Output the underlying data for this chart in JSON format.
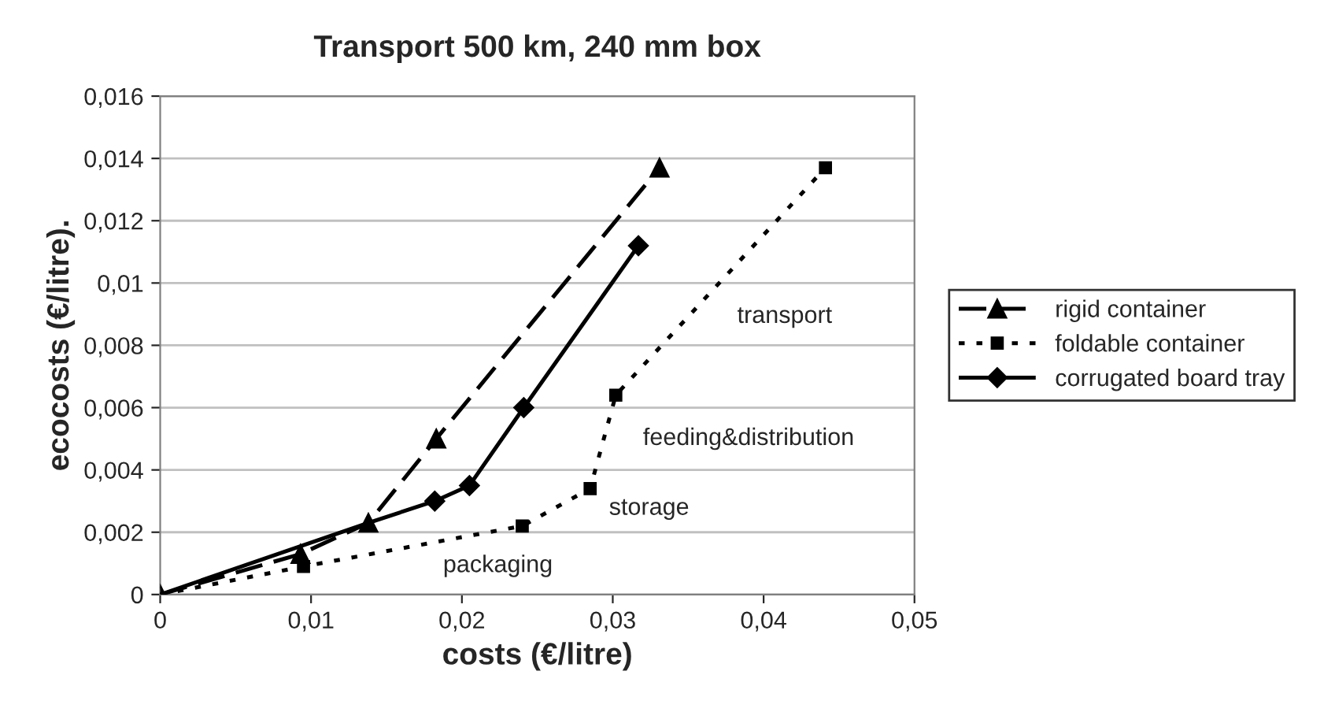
{
  "chart_data": {
    "type": "line",
    "title": "Transport 500 km, 240 mm box",
    "xlabel": "costs (€/litre)",
    "ylabel": "ecocosts (€/litre).",
    "series": [
      {
        "name": "rigid container",
        "color": "#000000",
        "marker": "triangle",
        "line_style": "dashed",
        "x": [
          0,
          0.0093,
          0.0138,
          0.0183,
          0.0331
        ],
        "values": [
          0,
          0.0013,
          0.0023,
          0.005,
          0.0137
        ]
      },
      {
        "name": "foldable container",
        "color": "#000000",
        "marker": "square",
        "line_style": "dotted",
        "x": [
          0,
          0.0095,
          0.024,
          0.0285,
          0.0302,
          0.0441
        ],
        "values": [
          0,
          0.0009,
          0.0022,
          0.0034,
          0.0064,
          0.0137
        ]
      },
      {
        "name": "corrugated board tray",
        "color": "#000000",
        "marker": "diamond",
        "line_style": "solid",
        "x": [
          0,
          0.0138,
          0.0182,
          0.0205,
          0.0241,
          0.0317
        ],
        "values": [
          0,
          0.0023,
          0.003,
          0.0035,
          0.006,
          0.0112
        ]
      }
    ],
    "annotations": [
      "transport",
      "feeding&distribution",
      "storage",
      "packaging"
    ],
    "xlim": [
      0,
      0.05
    ],
    "xticks": [
      0,
      {
        "value": 0.01,
        "label": "0,01"
      },
      {
        "value": 0.02,
        "label": "0,02"
      },
      {
        "value": 0.03,
        "label": "0,03"
      },
      {
        "value": 0.04,
        "label": "0,04"
      },
      {
        "value": 0.05,
        "label": "0,05"
      }
    ],
    "ylim": [
      0,
      0.016
    ],
    "yticks": [
      0,
      {
        "value": 0.002,
        "label": "0,002"
      },
      {
        "value": 0.004,
        "label": "0,004"
      },
      {
        "value": 0.006,
        "label": "0,006"
      },
      {
        "value": 0.008,
        "label": "0,008"
      },
      {
        "value": 0.01,
        "label": "0,01"
      },
      {
        "value": 0.012,
        "label": "0,012"
      },
      {
        "value": 0.014,
        "label": "0,014"
      },
      {
        "value": 0.016,
        "label": "0,016"
      }
    ],
    "grid": "y",
    "legend": "right"
  }
}
